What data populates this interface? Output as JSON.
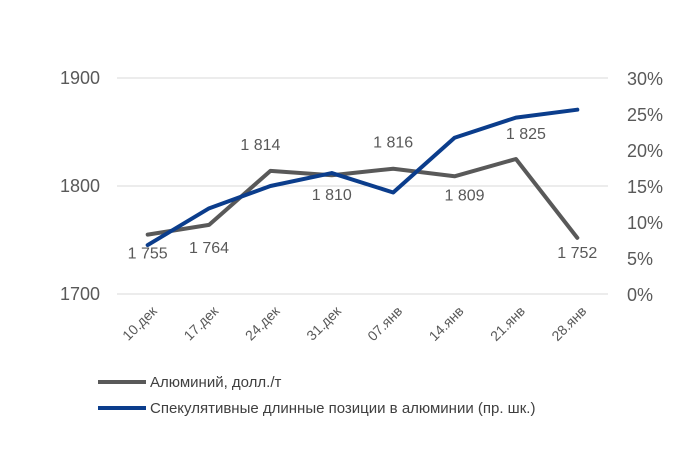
{
  "chart_data": {
    "type": "line",
    "categories": [
      "10.дек",
      "17.дек",
      "24.дек",
      "31.дек",
      "07.янв",
      "14.янв",
      "21.янв",
      "28.янв"
    ],
    "left_axis": {
      "ticks": [
        "1700",
        "1800",
        "1900"
      ],
      "range": [
        1700,
        1900
      ]
    },
    "right_axis": {
      "ticks": [
        "0%",
        "5%",
        "10%",
        "15%",
        "20%",
        "25%",
        "30%"
      ],
      "range": [
        0,
        30
      ]
    },
    "grid": true,
    "legend_position": "bottom",
    "series": [
      {
        "name": "Алюминий, долл./т",
        "axis": "left",
        "color": "#595959",
        "values": [
          1755,
          1764,
          1814,
          1810,
          1816,
          1809,
          1825,
          1752
        ],
        "labels": [
          "1 755",
          "1 764",
          "1 814",
          "1 810",
          "1 816",
          "1 809",
          "1 825",
          "1 752"
        ]
      },
      {
        "name": "Спекулятивные длинные позиции в алюминии (пр. шк.)",
        "axis": "right",
        "color": "#0b3d8c",
        "values": [
          6.8,
          11.9,
          15.0,
          16.8,
          14.1,
          21.7,
          24.5,
          25.6
        ]
      }
    ]
  }
}
